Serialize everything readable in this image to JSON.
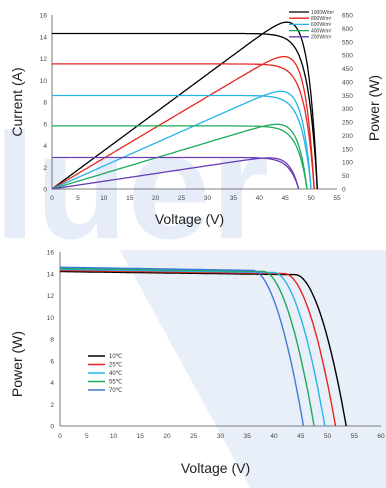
{
  "colors": {
    "watermark": "#e8eef8",
    "series": [
      "#000000",
      "#e6261f",
      "#27b5e8",
      "#1faa5a",
      "#6a3db5"
    ],
    "temp_series": [
      "#000000",
      "#e6261f",
      "#27b5e8",
      "#1faa5a",
      "#3f7ad6"
    ]
  },
  "chart_data": [
    {
      "type": "line",
      "xlabel": "Voltage (V)",
      "ylabel": "Current (A)",
      "y2label": "Power (W)",
      "xlim": [
        0,
        55
      ],
      "ylim": [
        0,
        16
      ],
      "y2lim": [
        0,
        650
      ],
      "x_ticks": [
        "0",
        "5",
        "10",
        "15",
        "20",
        "25",
        "30",
        "35",
        "40",
        "45",
        "50",
        "55"
      ],
      "y_ticks": [
        "0",
        "2",
        "4",
        "6",
        "8",
        "10",
        "12",
        "14",
        "16"
      ],
      "y2_ticks": [
        "0",
        "50",
        "100",
        "150",
        "200",
        "250",
        "300",
        "350",
        "400",
        "450",
        "500",
        "550",
        "600",
        "650"
      ],
      "legend_position": "top-right",
      "series": [
        {
          "name": "1000W/m²",
          "isc": 14.3,
          "voc": 51.2,
          "vmp": 43.0,
          "imp": 13.9
        },
        {
          "name": "800W/m²",
          "isc": 11.5,
          "voc": 50.6,
          "vmp": 42.6,
          "imp": 11.1
        },
        {
          "name": "600W/m²",
          "isc": 8.6,
          "voc": 50.0,
          "vmp": 42.3,
          "imp": 8.3
        },
        {
          "name": "400W/m²",
          "isc": 5.8,
          "voc": 49.2,
          "vmp": 41.8,
          "imp": 5.6
        },
        {
          "name": "200W/m²",
          "isc": 2.9,
          "voc": 47.6,
          "vmp": 40.6,
          "imp": 2.8
        }
      ]
    },
    {
      "type": "line",
      "xlabel": "Voltage (V)",
      "ylabel": "Power (W)",
      "xlim": [
        0,
        60
      ],
      "ylim": [
        0,
        16
      ],
      "x_ticks": [
        "0",
        "5",
        "10",
        "15",
        "20",
        "25",
        "30",
        "35",
        "40",
        "45",
        "50",
        "55",
        "60"
      ],
      "y_ticks": [
        "0",
        "2",
        "4",
        "6",
        "8",
        "10",
        "12",
        "14",
        "16"
      ],
      "legend_position": "left",
      "series": [
        {
          "name": "10℃",
          "isc": 14.2,
          "voc": 53.5,
          "knee": 44.0
        },
        {
          "name": "25℃",
          "isc": 14.3,
          "voc": 51.5,
          "knee": 42.0
        },
        {
          "name": "40℃",
          "isc": 14.4,
          "voc": 49.5,
          "knee": 40.0
        },
        {
          "name": "55℃",
          "isc": 14.5,
          "voc": 47.5,
          "knee": 38.0
        },
        {
          "name": "70℃",
          "isc": 14.6,
          "voc": 45.5,
          "knee": 36.0
        }
      ]
    }
  ]
}
